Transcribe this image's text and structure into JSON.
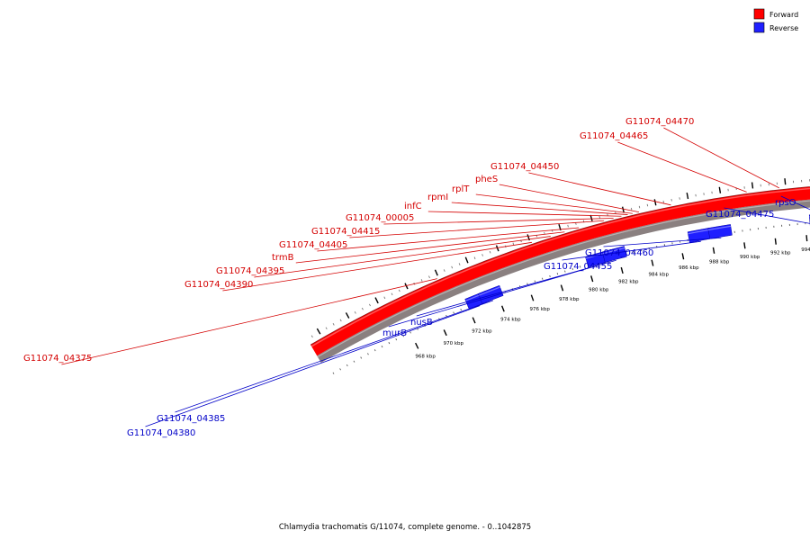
{
  "legend": {
    "forward_label": "Forward",
    "reverse_label": "Reverse",
    "forward_color": "#ff0000",
    "reverse_color": "#1f1fff"
  },
  "caption": "Chlamydia trachomatis G/11074, complete genome. - 0..1042875",
  "kbp_ticks": [
    {
      "pos": 968,
      "label": "968 kbp"
    },
    {
      "pos": 970,
      "label": "970 kbp"
    },
    {
      "pos": 972,
      "label": "972 kbp"
    },
    {
      "pos": 974,
      "label": "974 kbp"
    },
    {
      "pos": 976,
      "label": "976 kbp"
    },
    {
      "pos": 978,
      "label": "978 kbp"
    },
    {
      "pos": 980,
      "label": "980 kbp"
    },
    {
      "pos": 982,
      "label": "982 kbp"
    },
    {
      "pos": 984,
      "label": "984 kbp"
    },
    {
      "pos": 986,
      "label": "986 kbp"
    },
    {
      "pos": 988,
      "label": "988 kbp"
    },
    {
      "pos": 990,
      "label": "990 kbp"
    },
    {
      "pos": 992,
      "label": "992 kbp"
    },
    {
      "pos": 994,
      "label": "994 kbp"
    }
  ],
  "forward_genes": [
    {
      "name": "G11074_04375",
      "pos": 970.9
    },
    {
      "name": "G11074_04390",
      "pos": 977.1
    },
    {
      "name": "G11074_04395",
      "pos": 978.3
    },
    {
      "name": "trmB",
      "pos": 979.2
    },
    {
      "name": "G11074_04405",
      "pos": 980.1
    },
    {
      "name": "G11074_04415",
      "pos": 981.7
    },
    {
      "name": "G11074_00005",
      "pos": 982.3
    },
    {
      "name": "infC",
      "pos": 982.8
    },
    {
      "name": "rpmI",
      "pos": 983.2
    },
    {
      "name": "rplT",
      "pos": 983.5
    },
    {
      "name": "pheS",
      "pos": 983.9
    },
    {
      "name": "G11074_04450",
      "pos": 985.9
    },
    {
      "name": "G11074_04465",
      "pos": 990.6
    },
    {
      "name": "G11074_04470",
      "pos": 992.6
    }
  ],
  "reverse_genes": [
    {
      "name": "G11074_04380",
      "pos": 972.7
    },
    {
      "name": "G11074_04385",
      "pos": 973.6
    },
    {
      "name": "murB",
      "pos": 980.7
    },
    {
      "name": "nusB",
      "pos": 981.8
    },
    {
      "name": "G11074_04455",
      "pos": 987.3
    },
    {
      "name": "G11074_04460",
      "pos": 988.6
    },
    {
      "name": "G11074_04475",
      "pos": 995.0
    },
    {
      "name": "rpsO",
      "pos": 996.3
    }
  ]
}
